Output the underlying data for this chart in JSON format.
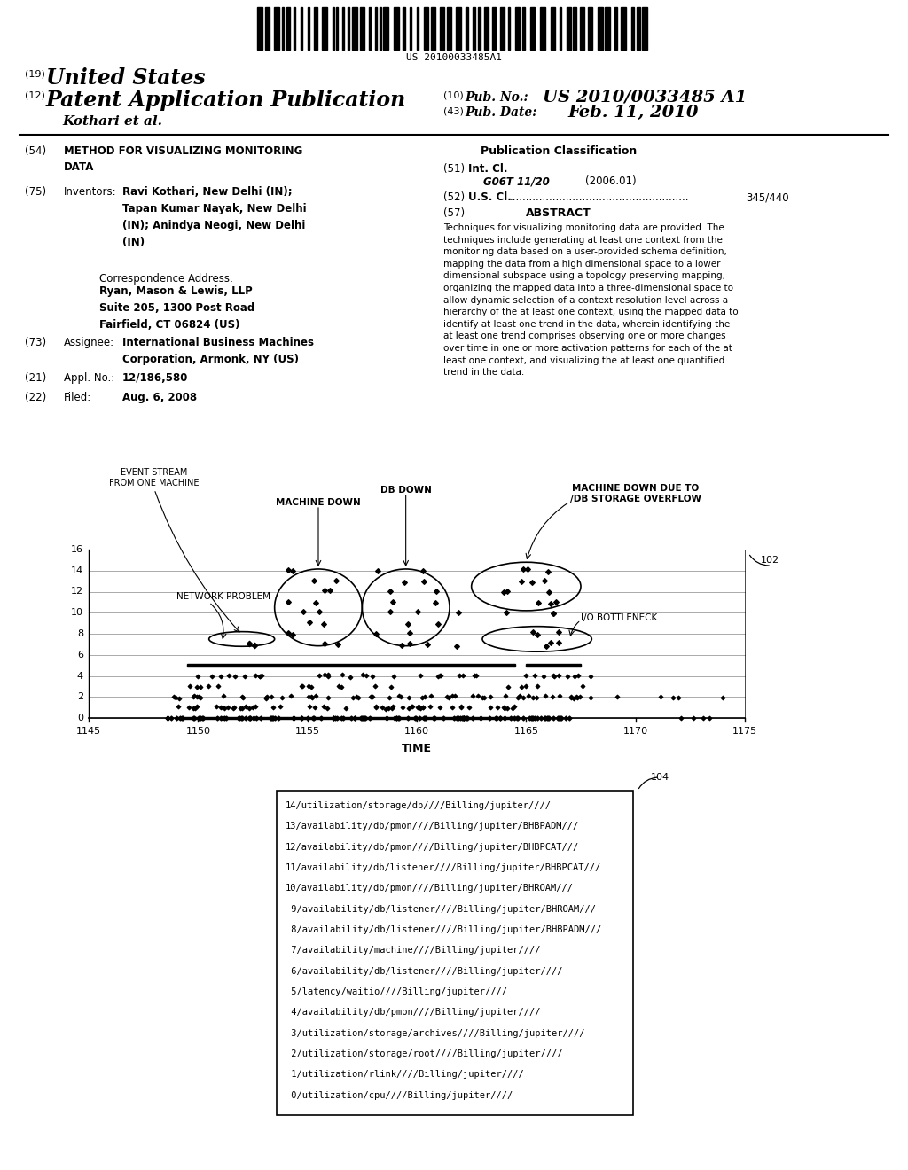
{
  "background_color": "#ffffff",
  "barcode_text": "US 20100033485A1",
  "header": {
    "number_19": "(19)",
    "united_states": "United States",
    "number_12": "(12)",
    "patent_app": "Patent Application Publication",
    "inventor": "Kothari et al.",
    "number_10": "(10)",
    "pub_no_label": "Pub. No.:",
    "pub_no": "US 2010/0033485 A1",
    "number_43": "(43)",
    "pub_date_label": "Pub. Date:",
    "pub_date": "Feb. 11, 2010"
  },
  "left_col": {
    "item_54_num": "(54)",
    "item_54_label": "METHOD FOR VISUALIZING MONITORING\nDATA",
    "item_75_num": "(75)",
    "item_75_label": "Inventors:",
    "item_75_text": "Ravi Kothari, New Delhi (IN);\nTapan Kumar Nayak, New Delhi\n(IN); Anindya Neogi, New Delhi\n(IN)",
    "corr_label": "Correspondence Address:",
    "corr_text": "Ryan, Mason & Lewis, LLP\nSuite 205, 1300 Post Road\nFairfield, CT 06824 (US)",
    "item_73_num": "(73)",
    "item_73_label": "Assignee:",
    "item_73_text": "International Business Machines\nCorporation, Armonk, NY (US)",
    "item_21_num": "(21)",
    "item_21_label": "Appl. No.:",
    "item_21_text": "12/186,580",
    "item_22_num": "(22)",
    "item_22_label": "Filed:",
    "item_22_text": "Aug. 6, 2008"
  },
  "right_col": {
    "pub_class_header": "Publication Classification",
    "item_51_num": "(51)",
    "item_51_label": "Int. Cl.",
    "item_51_code": "G06T 11/20",
    "item_51_year": "(2006.01)",
    "item_52_num": "(52)",
    "item_52_label": "U.S. Cl.",
    "item_52_dots": "......................................................",
    "item_52_num_val": "345/440",
    "item_57_num": "(57)",
    "item_57_label": "ABSTRACT",
    "abstract_text": "Techniques for visualizing monitoring data are provided. The\ntechniques include generating at least one context from the\nmonitoring data based on a user-provided schema definition,\nmapping the data from a high dimensional space to a lower\ndimensional subspace using a topology preserving mapping,\norganizing the mapped data into a three-dimensional space to\nallow dynamic selection of a context resolution level across a\nhierarchy of the at least one context, using the mapped data to\nidentify at least one trend in the data, wherein identifying the\nat least one trend comprises observing one or more changes\nover time in one or more activation patterns for each of the at\nleast one context, and visualizing the at least one quantified\ntrend in the data."
  },
  "chart": {
    "ref_102": "102",
    "ref_104": "104",
    "xlabel": "TIME",
    "yticks": [
      0,
      2,
      4,
      6,
      8,
      10,
      12,
      14,
      16
    ],
    "xticks": [
      1145,
      1150,
      1155,
      1160,
      1165,
      1170,
      1175
    ],
    "xmin": 1145,
    "xmax": 1175,
    "ymin": 0,
    "ymax": 16,
    "label_event_stream": "EVENT STREAM\nFROM ONE MACHINE",
    "label_machine_down": "MACHINE DOWN",
    "label_db_down": "DB DOWN",
    "label_machine_down_db": "MACHINE DOWN DUE TO\n/DB STORAGE OVERFLOW",
    "label_network": "NETWORK PROBLEM",
    "label_io": "I/O BOTTLENECK"
  },
  "legend_box": {
    "lines": [
      "14/utilization/storage/db////Billing/jupiter////",
      "13/availability/db/pmon////Billing/jupiter/BHBPADM///",
      "12/availability/db/pmon////Billing/jupiter/BHBPCAT///",
      "11/availability/db/listener////Billing/jupiter/BHBPCAT///",
      "10/availability/db/pmon////Billing/jupiter/BHROAM///",
      " 9/availability/db/listener////Billing/jupiter/BHROAM///",
      " 8/availability/db/listener////Billing/jupiter/BHBPADM///",
      " 7/availability/machine////Billing/jupiter////",
      " 6/availability/db/listener////Billing/jupiter////",
      " 5/latency/waitio////Billing/jupiter////",
      " 4/availability/db/pmon////Billing/jupiter////",
      " 3/utilization/storage/archives////Billing/jupiter////",
      " 2/utilization/storage/root////Billing/jupiter////",
      " 1/utilization/rlink////Billing/jupiter////",
      " 0/utilization/cpu////Billing/jupiter////"
    ]
  }
}
